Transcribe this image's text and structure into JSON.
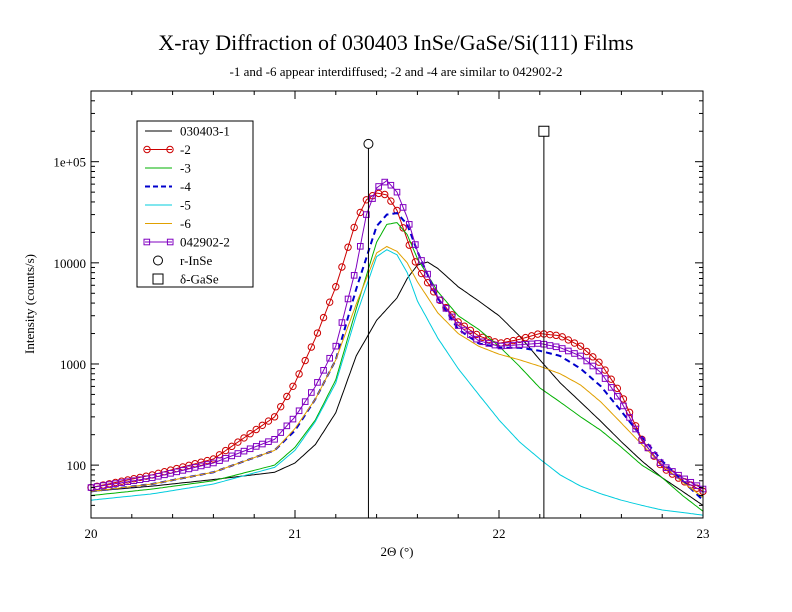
{
  "chart_data": {
    "type": "line",
    "title": "X-ray Diffraction of 030403 InSe/GaSe/Si(111) Films",
    "subtitle": "-1  and -6 appear interdiffused; -2 and -4 are similar to 042902-2",
    "xlabel": "2Θ (°)",
    "ylabel": "Intensity (counts/s)",
    "xlim": [
      20,
      23
    ],
    "ylim": [
      30,
      500000
    ],
    "yscale": "log",
    "x_ticks": [
      {
        "value": 20,
        "label": "20"
      },
      {
        "value": 21,
        "label": "21"
      },
      {
        "value": 22,
        "label": "22"
      },
      {
        "value": 23,
        "label": "23"
      }
    ],
    "y_ticks": [
      {
        "value": 100,
        "label": "100"
      },
      {
        "value": 1000,
        "label": "1000"
      },
      {
        "value": 10000,
        "label": "10000"
      },
      {
        "value": 100000,
        "label": "1e+05"
      }
    ],
    "grid": false,
    "legend_position": "top-left",
    "reference_lines": [
      {
        "name": "r-InSe",
        "x": 21.36,
        "top": 150000,
        "marker": "circle"
      },
      {
        "name": "δ-GaSe",
        "x": 22.22,
        "top": 200000,
        "marker": "square"
      }
    ],
    "series": [
      {
        "name": "030403-1",
        "color": "#000000",
        "style": "solid",
        "marker": "none",
        "x": [
          20.0,
          20.3,
          20.6,
          20.9,
          21.0,
          21.1,
          21.2,
          21.3,
          21.4,
          21.5,
          21.55,
          21.6,
          21.65,
          21.7,
          21.8,
          21.9,
          22.0,
          22.1,
          22.2,
          22.3,
          22.4,
          22.5,
          22.6,
          22.7,
          22.8,
          22.9,
          23.0
        ],
        "y": [
          55,
          62,
          72,
          85,
          105,
          160,
          330,
          1200,
          2700,
          4500,
          7000,
          9500,
          10200,
          8800,
          5800,
          4200,
          3000,
          1900,
          1100,
          650,
          420,
          270,
          170,
          110,
          75,
          55,
          40
        ]
      },
      {
        "name": "-2",
        "color": "#cc0000",
        "style": "solid",
        "marker": "circle",
        "x": [
          20.0,
          20.3,
          20.6,
          20.9,
          21.0,
          21.1,
          21.2,
          21.3,
          21.35,
          21.4,
          21.45,
          21.5,
          21.55,
          21.6,
          21.7,
          21.8,
          21.9,
          22.0,
          22.1,
          22.2,
          22.3,
          22.4,
          22.5,
          22.6,
          22.7,
          22.8,
          22.9,
          23.0
        ],
        "y": [
          60,
          80,
          115,
          300,
          650,
          1800,
          5800,
          26000,
          42000,
          49000,
          47000,
          33000,
          17000,
          9000,
          4500,
          2600,
          1900,
          1600,
          1750,
          2000,
          1900,
          1500,
          1000,
          500,
          180,
          95,
          70,
          55
        ]
      },
      {
        "name": "-3",
        "color": "#00b000",
        "style": "solid",
        "marker": "none",
        "x": [
          20.0,
          20.3,
          20.6,
          20.9,
          21.0,
          21.1,
          21.2,
          21.3,
          21.4,
          21.45,
          21.5,
          21.55,
          21.6,
          21.7,
          21.8,
          21.9,
          22.0,
          22.1,
          22.2,
          22.3,
          22.4,
          22.5,
          22.6,
          22.7,
          22.8,
          22.9,
          23.0
        ],
        "y": [
          50,
          58,
          70,
          100,
          150,
          280,
          700,
          3500,
          16000,
          24000,
          25000,
          19000,
          11000,
          5200,
          3000,
          2200,
          1500,
          950,
          580,
          420,
          300,
          220,
          150,
          100,
          75,
          50,
          35
        ]
      },
      {
        "name": "-4",
        "color": "#0000cc",
        "style": "dashed",
        "marker": "none",
        "x": [
          20.0,
          20.3,
          20.6,
          20.9,
          21.0,
          21.1,
          21.2,
          21.3,
          21.4,
          21.45,
          21.5,
          21.55,
          21.6,
          21.7,
          21.8,
          21.9,
          22.0,
          22.1,
          22.2,
          22.3,
          22.4,
          22.5,
          22.6,
          22.7,
          22.8,
          22.9,
          23.0
        ],
        "y": [
          55,
          65,
          85,
          140,
          220,
          450,
          1100,
          5500,
          23000,
          30000,
          31000,
          24000,
          13000,
          4500,
          2200,
          1600,
          1450,
          1450,
          1350,
          1200,
          900,
          600,
          340,
          190,
          110,
          70,
          45
        ]
      },
      {
        "name": "-5",
        "color": "#00ccdd",
        "style": "solid",
        "marker": "none",
        "x": [
          20.0,
          20.3,
          20.6,
          20.9,
          21.0,
          21.1,
          21.2,
          21.3,
          21.4,
          21.45,
          21.5,
          21.55,
          21.6,
          21.7,
          21.8,
          21.9,
          22.0,
          22.1,
          22.2,
          22.3,
          22.4,
          22.5,
          22.6,
          22.7,
          22.8,
          22.9,
          23.0
        ],
        "y": [
          45,
          52,
          65,
          95,
          140,
          270,
          650,
          3000,
          11500,
          13500,
          12000,
          8000,
          4200,
          1800,
          900,
          500,
          280,
          170,
          115,
          80,
          62,
          52,
          45,
          40,
          36,
          34,
          32
        ]
      },
      {
        "name": "-6",
        "color": "#e0a000",
        "style": "solid",
        "marker": "none",
        "x": [
          20.0,
          20.3,
          20.6,
          20.9,
          21.0,
          21.1,
          21.2,
          21.3,
          21.4,
          21.45,
          21.5,
          21.55,
          21.6,
          21.7,
          21.8,
          21.9,
          22.0,
          22.1,
          22.2,
          22.3,
          22.4,
          22.5,
          22.6,
          22.7,
          22.8,
          22.9,
          23.0
        ],
        "y": [
          55,
          65,
          85,
          140,
          230,
          450,
          1100,
          3900,
          12500,
          14500,
          13000,
          10000,
          6500,
          3200,
          2000,
          1500,
          1250,
          1100,
          950,
          800,
          620,
          420,
          260,
          160,
          100,
          68,
          48
        ]
      },
      {
        "name": "042902-2",
        "color": "#8000c0",
        "style": "solid",
        "marker": "square",
        "x": [
          20.0,
          20.3,
          20.6,
          20.9,
          21.0,
          21.1,
          21.2,
          21.3,
          21.35,
          21.4,
          21.45,
          21.5,
          21.55,
          21.6,
          21.7,
          21.8,
          21.9,
          22.0,
          22.1,
          22.2,
          22.3,
          22.4,
          22.5,
          22.6,
          22.7,
          22.8,
          22.9,
          23.0
        ],
        "y": [
          60,
          75,
          105,
          180,
          300,
          600,
          1500,
          9000,
          30000,
          55000,
          65000,
          50000,
          28000,
          13000,
          4600,
          2400,
          1700,
          1500,
          1550,
          1600,
          1450,
          1200,
          820,
          420,
          175,
          100,
          75,
          58
        ]
      }
    ]
  }
}
